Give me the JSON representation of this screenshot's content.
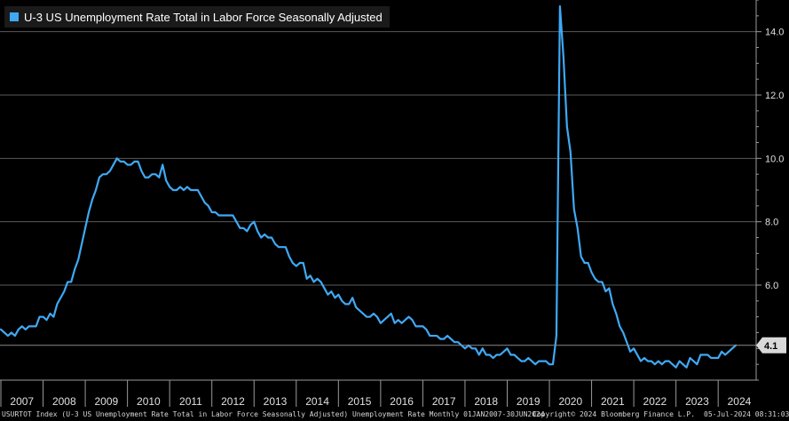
{
  "legend": {
    "label": "U-3 US Unemployment Rate Total in Labor Force Seasonally Adjusted",
    "color": "#3fa9f5"
  },
  "footer": {
    "left": "USURTOT Index (U-3 US Unemployment Rate Total in Labor Force Seasonally Adjusted) Unemployment Rate  Monthly 01JAN2007-30JUN2024",
    "center": "Copyright© 2024 Bloomberg Finance L.P.",
    "right": "05-Jul-2024 08:31:03"
  },
  "chart_data": {
    "type": "line",
    "x_axis_labels": [
      "2007",
      "2008",
      "2009",
      "2010",
      "2011",
      "2012",
      "2013",
      "2014",
      "2015",
      "2016",
      "2017",
      "2018",
      "2019",
      "2020",
      "2021",
      "2022",
      "2023",
      "2024"
    ],
    "y_tick_labels": [
      "6.0",
      "8.0",
      "10.0",
      "12.0",
      "14.0"
    ],
    "y_ticks": [
      6,
      8,
      10,
      12,
      14
    ],
    "ylim": [
      3.0,
      15.0
    ],
    "last_value_label": "4.1",
    "last_value": 4.1,
    "grid": "horizontal",
    "line_color": "#3fa9f5",
    "x_start": "2007-01",
    "series": [
      {
        "name": "U-3 US Unemployment Rate Total in Labor Force Seasonally Adjusted",
        "values": [
          4.6,
          4.5,
          4.4,
          4.5,
          4.4,
          4.6,
          4.7,
          4.6,
          4.7,
          4.7,
          4.7,
          5.0,
          5.0,
          4.9,
          5.1,
          5.0,
          5.4,
          5.6,
          5.8,
          6.1,
          6.1,
          6.5,
          6.8,
          7.3,
          7.8,
          8.3,
          8.7,
          9.0,
          9.4,
          9.5,
          9.5,
          9.6,
          9.8,
          10.0,
          9.9,
          9.9,
          9.8,
          9.8,
          9.9,
          9.9,
          9.6,
          9.4,
          9.4,
          9.5,
          9.5,
          9.4,
          9.8,
          9.3,
          9.1,
          9.0,
          9.0,
          9.1,
          9.0,
          9.1,
          9.0,
          9.0,
          9.0,
          8.8,
          8.6,
          8.5,
          8.3,
          8.3,
          8.2,
          8.2,
          8.2,
          8.2,
          8.2,
          8.0,
          7.8,
          7.8,
          7.7,
          7.9,
          8.0,
          7.7,
          7.5,
          7.6,
          7.5,
          7.5,
          7.3,
          7.2,
          7.2,
          7.2,
          6.9,
          6.7,
          6.6,
          6.7,
          6.7,
          6.2,
          6.3,
          6.1,
          6.2,
          6.1,
          5.9,
          5.7,
          5.8,
          5.6,
          5.7,
          5.5,
          5.4,
          5.4,
          5.6,
          5.3,
          5.2,
          5.1,
          5.0,
          5.0,
          5.1,
          5.0,
          4.8,
          4.9,
          5.0,
          5.1,
          4.8,
          4.9,
          4.8,
          4.9,
          5.0,
          4.9,
          4.7,
          4.7,
          4.7,
          4.6,
          4.4,
          4.4,
          4.4,
          4.3,
          4.3,
          4.4,
          4.3,
          4.2,
          4.2,
          4.1,
          4.0,
          4.1,
          4.0,
          4.0,
          3.8,
          4.0,
          3.8,
          3.8,
          3.7,
          3.8,
          3.8,
          3.9,
          4.0,
          3.8,
          3.8,
          3.7,
          3.6,
          3.6,
          3.7,
          3.6,
          3.5,
          3.6,
          3.6,
          3.6,
          3.5,
          3.5,
          4.4,
          14.8,
          13.2,
          11.0,
          10.2,
          8.4,
          7.8,
          6.9,
          6.7,
          6.7,
          6.4,
          6.2,
          6.1,
          6.1,
          5.8,
          5.9,
          5.4,
          5.1,
          4.7,
          4.5,
          4.2,
          3.9,
          4.0,
          3.8,
          3.6,
          3.7,
          3.6,
          3.6,
          3.5,
          3.6,
          3.5,
          3.6,
          3.6,
          3.5,
          3.4,
          3.6,
          3.5,
          3.4,
          3.7,
          3.6,
          3.5,
          3.8,
          3.8,
          3.8,
          3.7,
          3.7,
          3.7,
          3.9,
          3.8,
          3.9,
          4.0,
          4.1
        ]
      }
    ]
  }
}
